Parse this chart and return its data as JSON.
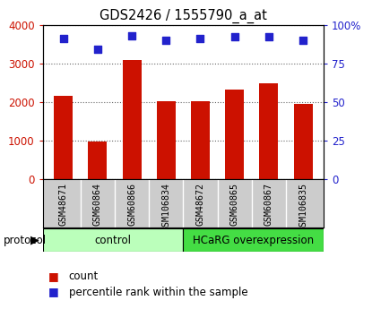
{
  "title": "GDS2426 / 1555790_a_at",
  "samples": [
    "GSM48671",
    "GSM60864",
    "GSM60866",
    "GSM106834",
    "GSM48672",
    "GSM60865",
    "GSM60867",
    "GSM106835"
  ],
  "counts": [
    2150,
    980,
    3080,
    2010,
    2020,
    2310,
    2490,
    1950
  ],
  "percentile_ranks": [
    91,
    84,
    93,
    90,
    91,
    92,
    92,
    90
  ],
  "bar_color": "#cc1100",
  "dot_color": "#2222cc",
  "ylim_left": [
    0,
    4000
  ],
  "ylim_right": [
    0,
    100
  ],
  "yticks_left": [
    0,
    1000,
    2000,
    3000,
    4000
  ],
  "yticks_right": [
    0,
    25,
    50,
    75,
    100
  ],
  "yticklabels_right": [
    "0",
    "25",
    "50",
    "75",
    "100%"
  ],
  "bg_color": "#ffffff",
  "plot_bg": "#ffffff",
  "control_color": "#bbffbb",
  "hcarg_color": "#44dd44",
  "tick_label_bg": "#cccccc",
  "legend_count_label": "count",
  "legend_pct_label": "percentile rank within the sample",
  "protocol_label": "protocol",
  "n_control": 4,
  "n_hcarg": 4
}
